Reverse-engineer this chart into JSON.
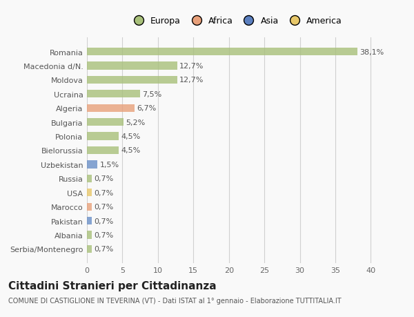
{
  "categories": [
    "Serbia/Montenegro",
    "Albania",
    "Pakistan",
    "Marocco",
    "USA",
    "Russia",
    "Uzbekistan",
    "Bielorussia",
    "Polonia",
    "Bulgaria",
    "Algeria",
    "Ucraina",
    "Moldova",
    "Macedonia d/N.",
    "Romania"
  ],
  "values": [
    0.7,
    0.7,
    0.7,
    0.7,
    0.7,
    0.7,
    1.5,
    4.5,
    4.5,
    5.2,
    6.7,
    7.5,
    12.7,
    12.7,
    38.1
  ],
  "labels": [
    "0,7%",
    "0,7%",
    "0,7%",
    "0,7%",
    "0,7%",
    "0,7%",
    "1,5%",
    "4,5%",
    "4,5%",
    "5,2%",
    "6,7%",
    "7,5%",
    "12,7%",
    "12,7%",
    "38,1%"
  ],
  "colors": [
    "#a8c07a",
    "#a8c07a",
    "#6a8fc7",
    "#e8a07a",
    "#e8c86a",
    "#a8c07a",
    "#6a8fc7",
    "#a8c07a",
    "#a8c07a",
    "#a8c07a",
    "#e8a07a",
    "#a8c07a",
    "#a8c07a",
    "#a8c07a",
    "#a8c07a"
  ],
  "legend_labels": [
    "Europa",
    "Africa",
    "Asia",
    "America"
  ],
  "legend_colors": [
    "#a8c07a",
    "#e8a07a",
    "#5b7fbf",
    "#e8c86a"
  ],
  "xlim": [
    0,
    42
  ],
  "xticks": [
    0,
    5,
    10,
    15,
    20,
    25,
    30,
    35,
    40
  ],
  "title": "Cittadini Stranieri per Cittadinanza",
  "subtitle": "COMUNE DI CASTIGLIONE IN TEVERINA (VT) - Dati ISTAT al 1° gennaio - Elaborazione TUTTITALIA.IT",
  "bg_color": "#f9f9f9",
  "grid_color": "#d0d0d0",
  "bar_height": 0.55,
  "label_fontsize": 8,
  "tick_fontsize": 8,
  "title_fontsize": 11,
  "subtitle_fontsize": 7
}
